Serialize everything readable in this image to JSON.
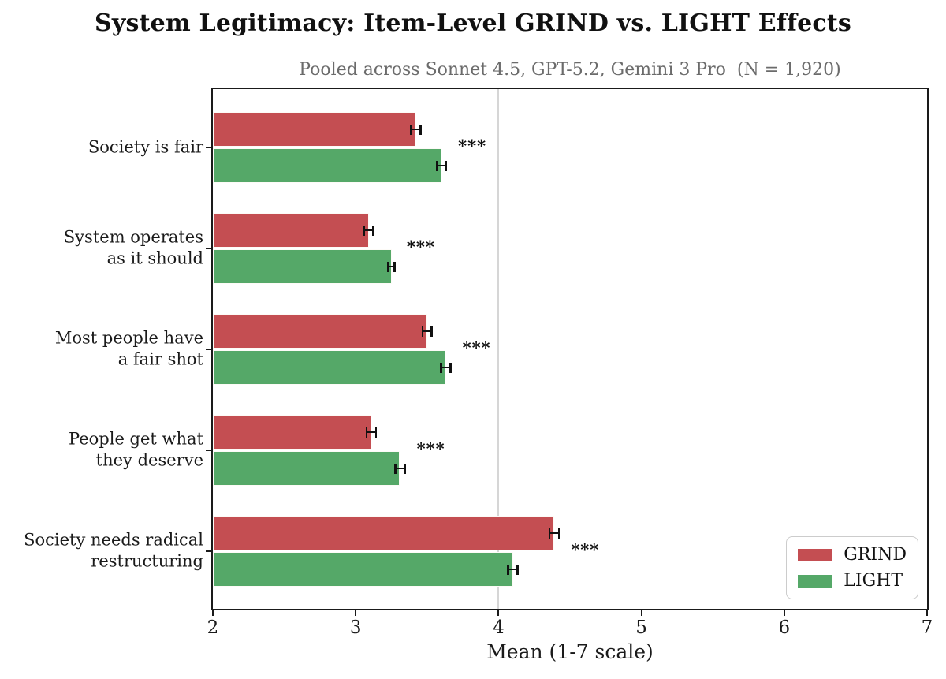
{
  "title": "System Legitimacy: Item-Level GRIND vs. LIGHT Effects",
  "subtitle": "Pooled across Sonnet 4.5, GPT-5.2, Gemini 3 Pro  (N = 1,920)",
  "chart_data": {
    "type": "bar",
    "orientation": "horizontal",
    "title": "System Legitimacy: Item-Level GRIND vs. LIGHT Effects",
    "subtitle": "Pooled across Sonnet 4.5, GPT-5.2, Gemini 3 Pro  (N = 1,920)",
    "categories": [
      "Society is fair",
      "System operates\nas it should",
      "Most people have\na fair shot",
      "People get what\nthey deserve",
      "Society needs radical\nrestructuring"
    ],
    "series": [
      {
        "name": "GRIND",
        "color": "#c44e52",
        "values": [
          3.42,
          3.09,
          3.5,
          3.11,
          4.39
        ],
        "errors": [
          0.04,
          0.04,
          0.04,
          0.04,
          0.04
        ]
      },
      {
        "name": "LIGHT",
        "color": "#55a868",
        "values": [
          3.6,
          3.25,
          3.63,
          3.31,
          4.1
        ],
        "errors": [
          0.04,
          0.03,
          0.04,
          0.04,
          0.04
        ]
      }
    ],
    "significance": [
      "***",
      "***",
      "***",
      "***",
      "***"
    ],
    "xlabel": "Mean (1-7 scale)",
    "xlim": [
      2,
      7
    ],
    "xticks": [
      2,
      3,
      4,
      5,
      6,
      7
    ],
    "reference_line_x": 4,
    "grid": false,
    "legend_position": "lower right",
    "error_bar_color": "#111111",
    "reference_line_color": "#d6d6d6"
  }
}
